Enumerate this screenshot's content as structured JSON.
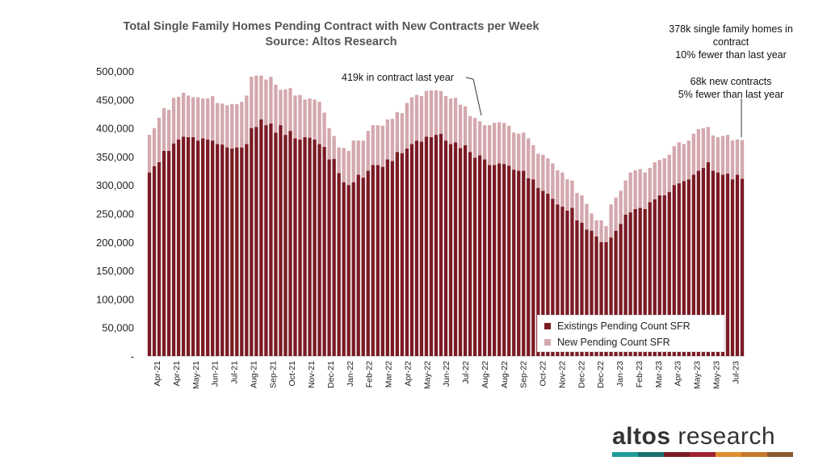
{
  "chart_data": {
    "type": "bar",
    "stacked": true,
    "title": "Total Single Family Homes Pending Contract with New Contracts per Week",
    "subtitle": "Source: Altos Research",
    "ylim": [
      0,
      500000
    ],
    "yticks": [
      "-",
      "50,000",
      "100,000",
      "150,000",
      "200,000",
      "250,000",
      "300,000",
      "350,000",
      "400,000",
      "450,000",
      "500,000"
    ],
    "xtick_labels": [
      "Apr-21",
      "Apr-21",
      "May-21",
      "Jun-21",
      "Jul-21",
      "Aug-21",
      "Sep-21",
      "Oct-21",
      "Nov-21",
      "Dec-21",
      "Jan-22",
      "Feb-22",
      "Mar-22",
      "Apr-22",
      "May-22",
      "Jun-22",
      "Jul-22",
      "Aug-22",
      "Aug-22",
      "Sep-22",
      "Oct-22",
      "Nov-22",
      "Dec-22",
      "Dec-22",
      "Jan-23",
      "Feb-23",
      "Mar-23",
      "Apr-23",
      "May-23",
      "May-23",
      "Jul-23"
    ],
    "series": [
      {
        "name": "Existings Pending Count SFR",
        "color": "#7b1a24",
        "values": [
          322000,
          333000,
          340000,
          360000,
          360000,
          373000,
          380000,
          385000,
          384000,
          384000,
          378000,
          382000,
          380000,
          378000,
          372000,
          371000,
          366000,
          364000,
          366000,
          366000,
          372000,
          400000,
          402000,
          415000,
          405000,
          408000,
          392000,
          405000,
          388000,
          395000,
          382000,
          380000,
          384000,
          383000,
          380000,
          372000,
          367000,
          345000,
          346000,
          321000,
          305000,
          300000,
          305000,
          318000,
          313000,
          325000,
          335000,
          335000,
          332000,
          345000,
          342000,
          358000,
          356000,
          364000,
          372000,
          378000,
          376000,
          385000,
          384000,
          388000,
          390000,
          378000,
          372000,
          375000,
          365000,
          370000,
          358000,
          348000,
          352000,
          345000,
          335000,
          335000,
          338000,
          337000,
          334000,
          327000,
          325000,
          325000,
          312000,
          310000,
          295000,
          290000,
          285000,
          276000,
          266000,
          262000,
          255000,
          260000,
          238000,
          234000,
          222000,
          220000,
          210000,
          200000,
          200000,
          208000,
          220000,
          232000,
          248000,
          252000,
          258000,
          260000,
          258000,
          270000,
          275000,
          282000,
          282000,
          288000,
          300000,
          303000,
          307000,
          310000,
          318000,
          325000,
          330000,
          340000,
          325000,
          322000,
          318000,
          320000,
          310000,
          318000,
          311000
        ]
      },
      {
        "name": "New Pending Count SFR",
        "color": "#d4a8ae",
        "values": [
          66000,
          67000,
          78000,
          75000,
          72000,
          80000,
          75000,
          77000,
          73000,
          70000,
          76000,
          70000,
          72000,
          78000,
          72000,
          72000,
          74000,
          78000,
          76000,
          80000,
          85000,
          90000,
          90000,
          77000,
          80000,
          82000,
          84000,
          62000,
          80000,
          75000,
          75000,
          78000,
          66000,
          69000,
          70000,
          74000,
          60000,
          55000,
          40000,
          45000,
          60000,
          60000,
          73000,
          60000,
          65000,
          70000,
          70000,
          70000,
          72000,
          70000,
          74000,
          70000,
          70000,
          80000,
          82000,
          80000,
          80000,
          80000,
          82000,
          78000,
          75000,
          78000,
          80000,
          78000,
          76000,
          68000,
          63000,
          70000,
          60000,
          60000,
          70000,
          74000,
          72000,
          72000,
          70000,
          65000,
          65000,
          67000,
          70000,
          60000,
          60000,
          63000,
          62000,
          62000,
          60000,
          60000,
          55000,
          48000,
          48000,
          48000,
          45000,
          30000,
          28000,
          38000,
          28000,
          58000,
          58000,
          58000,
          60000,
          70000,
          68000,
          68000,
          64000,
          60000,
          65000,
          62000,
          65000,
          65000,
          68000,
          72000,
          65000,
          68000,
          72000,
          73000,
          70000,
          62000,
          62000,
          62000,
          68000,
          68000,
          68000,
          62000,
          68000
        ]
      }
    ]
  },
  "annotations": {
    "right_top_line1": "378k single family homes in",
    "right_top_line2": "contract",
    "right_top_line3": "10% fewer than last year",
    "right_mid_line1": "68k new contracts",
    "right_mid_line2": "5% fewer than last year",
    "center": "419k in contract last year"
  },
  "brand": {
    "logo_bold": "altos",
    "logo_rest": " research",
    "bar_colors": [
      "#1f9c9a",
      "#1a7070",
      "#7b1a24",
      "#a1232f",
      "#e08f2f",
      "#c5782a",
      "#8a5a30"
    ]
  }
}
